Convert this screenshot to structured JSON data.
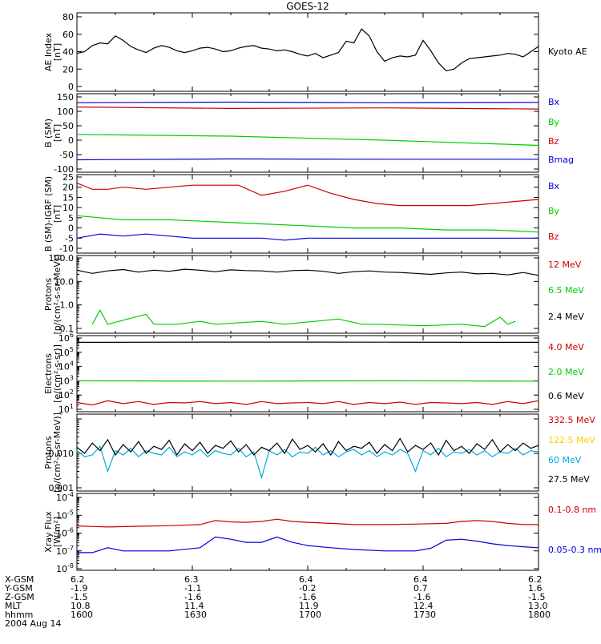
{
  "title": "GOES-12",
  "colors": {
    "black": "#000000",
    "red": "#cc0000",
    "green": "#00cc00",
    "blue": "#0000dd",
    "yellow": "#ffcc00",
    "cyan": "#00aadd"
  },
  "chart_data": [
    {
      "type": "line",
      "id": "ae",
      "ylabel": [
        "AE Index",
        "[nT]"
      ],
      "ylim": [
        0,
        80
      ],
      "yticks": [
        0,
        20,
        40,
        60,
        80
      ],
      "yscale": "linear",
      "series": [
        {
          "name": "Kyoto AE",
          "color": "#000000",
          "x": [
            0,
            1,
            2,
            3,
            4,
            5,
            6,
            7,
            8,
            9,
            10,
            11,
            12,
            13,
            14,
            15,
            16,
            17,
            18,
            19,
            20,
            21,
            22,
            23,
            24,
            25,
            26,
            27,
            28,
            29,
            30,
            31,
            32,
            33,
            34,
            35,
            36,
            37,
            38,
            39,
            40,
            41,
            42,
            43,
            44,
            45,
            46,
            47,
            48,
            49,
            50,
            51,
            52,
            53,
            54,
            55,
            56,
            57,
            58,
            59,
            60
          ],
          "values": [
            38,
            40,
            47,
            50,
            49,
            58,
            53,
            46,
            42,
            39,
            44,
            47,
            45,
            41,
            39,
            41,
            44,
            45,
            43,
            40,
            41,
            44,
            46,
            47,
            44,
            43,
            41,
            42,
            40,
            37,
            35,
            38,
            33,
            36,
            39,
            52,
            50,
            66,
            58,
            40,
            29,
            33,
            35,
            34,
            36,
            53,
            41,
            27,
            18,
            20,
            27,
            32,
            33,
            34,
            35,
            36,
            38,
            37,
            34,
            40,
            46
          ]
        }
      ]
    },
    {
      "type": "line",
      "id": "bfield",
      "ylabel": [
        "B (SM)",
        "[nT]"
      ],
      "ylim": [
        -100,
        150
      ],
      "yticks": [
        -100,
        -50,
        0,
        50,
        100,
        150
      ],
      "yscale": "linear",
      "series": [
        {
          "name": "Bx",
          "color": "#0000dd",
          "x": [
            0,
            20,
            40,
            60
          ],
          "values": [
            130,
            132,
            130,
            131
          ]
        },
        {
          "name": "By",
          "color": "#00cc00",
          "x": [
            0,
            20,
            40,
            60
          ],
          "values": [
            20,
            14,
            0,
            -18
          ]
        },
        {
          "name": "Bz",
          "color": "#cc0000",
          "x": [
            0,
            20,
            40,
            60
          ],
          "values": [
            115,
            110,
            112,
            108
          ]
        },
        {
          "name": "Bmag",
          "color": "#0000dd",
          "x": [
            0,
            20,
            40,
            60
          ],
          "values": [
            -68,
            -65,
            -66,
            -66
          ]
        }
      ]
    },
    {
      "type": "line",
      "id": "bdiff",
      "ylabel": [
        "B (SM)-IGRF (SM)",
        "[nT]"
      ],
      "ylim": [
        -10,
        25
      ],
      "yticks": [
        -10,
        -5,
        0,
        5,
        10,
        15,
        20,
        25
      ],
      "yscale": "linear",
      "series": [
        {
          "name": "Bx",
          "color": "#0000dd",
          "x": [
            0,
            3,
            6,
            9,
            12,
            15,
            18,
            21,
            24,
            27,
            30,
            33,
            36,
            39,
            42,
            45,
            48,
            51,
            54,
            57,
            60
          ],
          "values": [
            -5,
            -3,
            -4,
            -3,
            -4,
            -5,
            -5,
            -5,
            -5,
            -6,
            -5,
            -5,
            -5,
            -5,
            -5,
            -5,
            -5,
            -5,
            -5,
            -5,
            -5
          ]
        },
        {
          "name": "By",
          "color": "#00cc00",
          "x": [
            0,
            6,
            12,
            18,
            24,
            30,
            36,
            42,
            48,
            54,
            60
          ],
          "values": [
            6,
            4,
            4,
            3,
            2,
            1,
            0,
            0,
            -1,
            -1,
            -2
          ]
        },
        {
          "name": "Bz",
          "color": "#cc0000",
          "x": [
            0,
            2,
            4,
            6,
            9,
            12,
            15,
            18,
            21,
            24,
            27,
            30,
            33,
            36,
            39,
            42,
            45,
            48,
            51,
            54,
            57,
            60
          ],
          "values": [
            22,
            19,
            19,
            20,
            19,
            20,
            21,
            21,
            21,
            16,
            18,
            21,
            17,
            14,
            12,
            11,
            11,
            11,
            11,
            12,
            13,
            14
          ]
        }
      ]
    },
    {
      "type": "line",
      "id": "protons1",
      "ylabel": [
        "Protons",
        "[p/(cm²-s-sr-MeV)]"
      ],
      "ylim": [
        0.1,
        100
      ],
      "yticks": [
        0.1,
        1,
        10,
        100
      ],
      "yticklabels": [
        "0.1",
        "1.0",
        "10.0",
        "100.0"
      ],
      "yscale": "log",
      "series": [
        {
          "name": "12 MeV",
          "color": "#cc0000",
          "x": [],
          "values": []
        },
        {
          "name": "6.5 MeV",
          "color": "#00cc00",
          "x": [
            2,
            3,
            4,
            9,
            10,
            13,
            16,
            18,
            24,
            27,
            34,
            37,
            39,
            45,
            50,
            53,
            55,
            56,
            57
          ],
          "values": [
            0.15,
            0.6,
            0.15,
            0.4,
            0.15,
            0.15,
            0.2,
            0.15,
            0.2,
            0.15,
            0.25,
            0.15,
            0.15,
            0.13,
            0.15,
            0.12,
            0.3,
            0.15,
            0.2
          ]
        },
        {
          "name": "2.4 MeV",
          "color": "#000000",
          "x": [
            0,
            2,
            4,
            6,
            8,
            10,
            12,
            14,
            16,
            18,
            20,
            22,
            24,
            26,
            28,
            30,
            32,
            34,
            36,
            38,
            40,
            42,
            44,
            46,
            48,
            50,
            52,
            54,
            56,
            58,
            60
          ],
          "values": [
            30,
            22,
            28,
            32,
            25,
            30,
            27,
            33,
            30,
            26,
            31,
            29,
            28,
            25,
            29,
            30,
            27,
            22,
            26,
            28,
            25,
            24,
            22,
            20,
            23,
            25,
            21,
            22,
            19,
            24,
            18
          ]
        }
      ]
    },
    {
      "type": "line",
      "id": "electrons",
      "ylabel": [
        "Electrons",
        "[e/(cm²-s-sr)]"
      ],
      "ylim": [
        10,
        1000000
      ],
      "yticks": [
        10,
        100,
        1000,
        10000,
        100000,
        1000000
      ],
      "yticklabels": [
        "10^1",
        "10^2",
        "10^3",
        "10^4",
        "10^5",
        "10^6"
      ],
      "yscale": "log",
      "series": [
        {
          "name": "4.0 MeV",
          "color": "#cc0000",
          "x": [
            0,
            2,
            4,
            6,
            8,
            10,
            12,
            14,
            16,
            18,
            20,
            22,
            24,
            26,
            28,
            30,
            32,
            34,
            36,
            38,
            40,
            42,
            44,
            46,
            48,
            50,
            52,
            54,
            56,
            58,
            60
          ],
          "values": [
            30,
            20,
            40,
            25,
            35,
            22,
            30,
            28,
            35,
            25,
            30,
            22,
            35,
            25,
            28,
            30,
            25,
            35,
            22,
            30,
            25,
            32,
            22,
            30,
            28,
            25,
            30,
            22,
            35,
            25,
            40
          ]
        },
        {
          "name": "2.0 MeV",
          "color": "#00cc00",
          "x": [
            0,
            20,
            40,
            60
          ],
          "values": [
            1000,
            950,
            1000,
            950
          ]
        },
        {
          "name": "0.6 MeV",
          "color": "#000000",
          "x": [
            0,
            20,
            40,
            60
          ],
          "values": [
            500000,
            520000,
            510000,
            500000
          ]
        }
      ]
    },
    {
      "type": "line",
      "id": "protons2",
      "ylabel": [
        "Protons",
        "[p/(cm²-s-sr-MeV)]"
      ],
      "ylim": [
        0.001,
        0.1
      ],
      "yticks": [
        0.001,
        0.01,
        0.1
      ],
      "yticklabels": [
        "0.001",
        "0.010",
        ""
      ],
      "yscale": "log",
      "series": [
        {
          "name": "332.5 MeV",
          "color": "#cc0000",
          "x": [],
          "values": []
        },
        {
          "name": "122.5 MeV",
          "color": "#ffcc00",
          "x": [],
          "values": []
        },
        {
          "name": "60 MeV",
          "color": "#00aadd",
          "x": [
            0,
            1,
            2,
            3,
            4,
            5,
            6,
            7,
            8,
            9,
            10,
            11,
            12,
            13,
            14,
            15,
            16,
            17,
            18,
            19,
            20,
            21,
            22,
            23,
            24,
            25,
            26,
            27,
            28,
            29,
            30,
            31,
            32,
            33,
            34,
            35,
            36,
            37,
            38,
            39,
            40,
            41,
            42,
            43,
            44,
            45,
            46,
            47,
            48,
            49,
            50,
            51,
            52,
            53,
            54,
            55,
            56,
            57,
            58,
            59,
            60
          ],
          "values": [
            0.012,
            0.008,
            0.009,
            0.016,
            0.003,
            0.012,
            0.009,
            0.014,
            0.008,
            0.012,
            0.01,
            0.009,
            0.015,
            0.008,
            0.011,
            0.009,
            0.013,
            0.008,
            0.012,
            0.01,
            0.009,
            0.014,
            0.008,
            0.011,
            0.002,
            0.012,
            0.009,
            0.013,
            0.008,
            0.011,
            0.01,
            0.015,
            0.009,
            0.012,
            0.008,
            0.011,
            0.013,
            0.009,
            0.012,
            0.008,
            0.011,
            0.009,
            0.013,
            0.01,
            0.003,
            0.012,
            0.009,
            0.014,
            0.008,
            0.011,
            0.01,
            0.013,
            0.009,
            0.012,
            0.008,
            0.011,
            0.01,
            0.014,
            0.009,
            0.012,
            0.011
          ]
        },
        {
          "name": "27.5 MeV",
          "color": "#000000",
          "x": [
            0,
            1,
            2,
            3,
            4,
            5,
            6,
            7,
            8,
            9,
            10,
            11,
            12,
            13,
            14,
            15,
            16,
            17,
            18,
            19,
            20,
            21,
            22,
            23,
            24,
            25,
            26,
            27,
            28,
            29,
            30,
            31,
            32,
            33,
            34,
            35,
            36,
            37,
            38,
            39,
            40,
            41,
            42,
            43,
            44,
            45,
            46,
            47,
            48,
            49,
            50,
            51,
            52,
            53,
            54,
            55,
            56,
            57,
            58,
            59,
            60
          ],
          "values": [
            0.015,
            0.01,
            0.02,
            0.012,
            0.025,
            0.009,
            0.018,
            0.011,
            0.022,
            0.01,
            0.016,
            0.013,
            0.024,
            0.009,
            0.019,
            0.012,
            0.021,
            0.01,
            0.017,
            0.014,
            0.023,
            0.011,
            0.018,
            0.009,
            0.015,
            0.012,
            0.02,
            0.01,
            0.026,
            0.013,
            0.017,
            0.011,
            0.019,
            0.009,
            0.022,
            0.012,
            0.016,
            0.014,
            0.021,
            0.01,
            0.018,
            0.012,
            0.027,
            0.011,
            0.017,
            0.013,
            0.02,
            0.009,
            0.024,
            0.012,
            0.016,
            0.01,
            0.019,
            0.013,
            0.025,
            0.011,
            0.018,
            0.012,
            0.02,
            0.014,
            0.017
          ]
        }
      ]
    },
    {
      "type": "line",
      "id": "xray",
      "ylabel": [
        "Xray Flux",
        "[W/m²]"
      ],
      "ylim": [
        1e-08,
        0.0001
      ],
      "yticks": [
        1e-08,
        1e-07,
        1e-06,
        1e-05,
        0.0001
      ],
      "yticklabels": [
        "10^-8",
        "10^-7",
        "10^-6",
        "10^-5",
        "10^-4"
      ],
      "yscale": "log",
      "series": [
        {
          "name": "0.1-0.8 nm",
          "color": "#cc0000",
          "x": [
            0,
            4,
            8,
            12,
            16,
            18,
            20,
            22,
            24,
            26,
            28,
            30,
            33,
            36,
            40,
            44,
            48,
            50,
            52,
            54,
            56,
            58,
            60
          ],
          "values": [
            2.5e-06,
            2.2e-06,
            2.4e-06,
            2.6e-06,
            3e-06,
            5e-06,
            4.2e-06,
            4e-06,
            4.5e-06,
            6e-06,
            4.5e-06,
            4e-06,
            3.5e-06,
            3e-06,
            3e-06,
            3.2e-06,
            3.5e-06,
            4.5e-06,
            5e-06,
            4.5e-06,
            3.5e-06,
            3e-06,
            3e-06
          ]
        },
        {
          "name": "0.05-0.3 nm",
          "color": "#0000dd",
          "x": [
            0,
            2,
            4,
            6,
            8,
            12,
            16,
            18,
            20,
            22,
            24,
            26,
            28,
            30,
            33,
            36,
            40,
            44,
            46,
            48,
            50,
            52,
            54,
            56,
            58,
            60
          ],
          "values": [
            8e-08,
            8e-08,
            1.5e-07,
            1e-07,
            1e-07,
            1e-07,
            1.5e-07,
            6e-07,
            4.5e-07,
            3e-07,
            3e-07,
            6e-07,
            3e-07,
            2e-07,
            1.5e-07,
            1.2e-07,
            1e-07,
            1e-07,
            1.4e-07,
            4e-07,
            4.5e-07,
            3.5e-07,
            2.5e-07,
            2e-07,
            1.7e-07,
            1.5e-07
          ]
        }
      ]
    }
  ],
  "x_ticks": [
    "1600",
    "1630",
    "1700",
    "1730",
    "1800"
  ],
  "ephemeris": {
    "labels": [
      "X-GSM",
      "Y-GSM",
      "Z-GSM",
      "MLT",
      "hhmm"
    ],
    "columns": [
      [
        "6.2",
        "-1.9",
        "-1.5",
        "10.8",
        "1600"
      ],
      [
        "6.3",
        "-1.1",
        "-1.6",
        "11.4",
        "1630"
      ],
      [
        "6.4",
        "-0.2",
        "-1.6",
        "11.9",
        "1700"
      ],
      [
        "6.4",
        "0.7",
        "-1.6",
        "12.4",
        "1730"
      ],
      [
        "6.2",
        "1.6",
        "-1.5",
        "13.0",
        "1800"
      ]
    ],
    "date": "2004 Aug 14"
  }
}
